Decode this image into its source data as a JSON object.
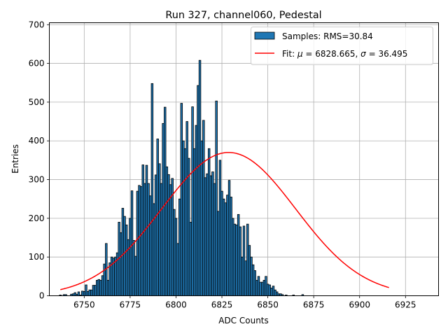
{
  "chart_data": {
    "type": "bar",
    "title": "Run 327, channel060, Pedestal",
    "xlabel": "ADC Counts",
    "ylabel": "Entries",
    "xlim": [
      6731,
      6943
    ],
    "ylim": [
      0,
      705
    ],
    "xticks": [
      6750,
      6775,
      6800,
      6825,
      6850,
      6875,
      6900,
      6925
    ],
    "yticks": [
      0,
      100,
      200,
      300,
      400,
      500,
      600,
      700
    ],
    "grid": true,
    "legend_location": "top-right",
    "legend": {
      "samples": "Samples: RMS=30.84",
      "fit_prefix": "Fit: ",
      "fit_mu_symbol": "μ",
      "fit_mu_value": " = 6828.665, ",
      "fit_sigma_symbol": "σ",
      "fit_sigma_value": " = 36.495"
    },
    "bar_color": "#1f77b4",
    "fit_color": "#ff0000",
    "histogram": {
      "bin_start": 6737,
      "bin_width": 1,
      "counts": [
        2,
        0,
        3,
        3,
        0,
        0,
        4,
        5,
        8,
        4,
        10,
        2,
        12,
        11,
        28,
        11,
        15,
        15,
        27,
        27,
        40,
        42,
        40,
        52,
        82,
        135,
        40,
        85,
        100,
        97,
        100,
        111,
        190,
        163,
        226,
        205,
        183,
        145,
        200,
        271,
        143,
        102,
        270,
        285,
        282,
        338,
        290,
        337,
        290,
        258,
        548,
        238,
        312,
        405,
        341,
        290,
        445,
        487,
        333,
        313,
        287,
        303,
        223,
        200,
        135,
        250,
        497,
        400,
        380,
        450,
        355,
        190,
        488,
        380,
        440,
        543,
        608,
        400,
        453,
        305,
        315,
        380,
        310,
        320,
        290,
        503,
        218,
        350,
        270,
        250,
        240,
        260,
        298,
        255,
        200,
        185,
        183,
        210,
        178,
        100,
        180,
        90,
        185,
        130,
        100,
        80,
        65,
        40,
        50,
        35,
        35,
        40,
        50,
        30,
        28,
        20,
        25,
        15,
        10,
        5,
        5,
        3,
        0,
        2,
        0,
        0,
        0,
        2,
        0,
        0,
        0,
        0,
        3
      ]
    },
    "fit": {
      "type": "gaussian",
      "mu": 6828.665,
      "sigma": 36.495,
      "amplitude": 370,
      "x_range": [
        6737,
        6916
      ]
    }
  }
}
